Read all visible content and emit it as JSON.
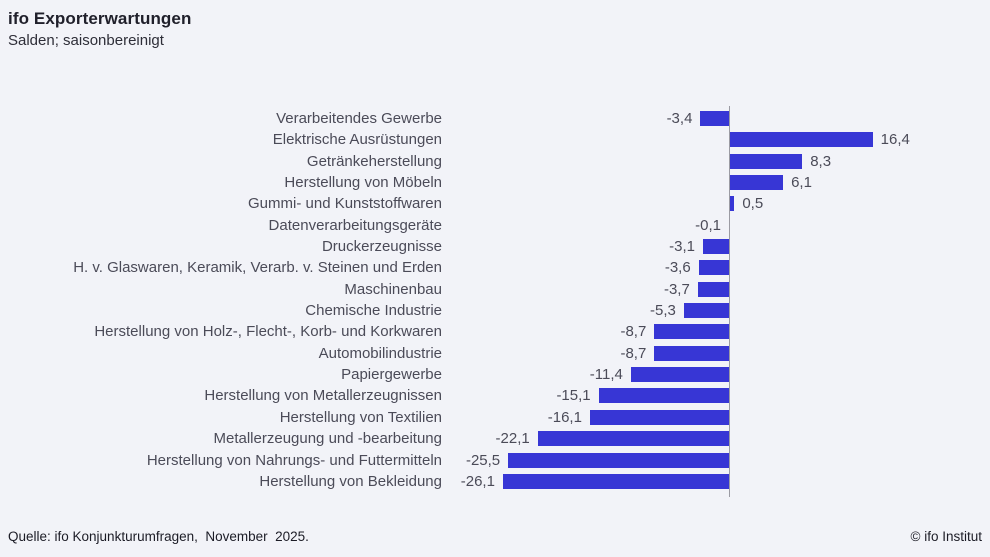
{
  "title": "ifo Exporterwartungen",
  "subtitle": "Salden; saisonbereinigt",
  "footer": {
    "source": "Quelle: ifo Konjunkturumfragen,  November  2025.",
    "copyright": "© ifo Institut"
  },
  "colors": {
    "background": "#F2F3F8",
    "bar": "#3736D5",
    "axis": "#9B9BA3",
    "category_text": "#4B4B58",
    "title_text": "#20202B"
  },
  "chart_data": {
    "type": "bar",
    "orientation": "horizontal",
    "title": "ifo Exporterwartungen",
    "subtitle": "Salden; saisonbereinigt",
    "xlabel": "",
    "ylabel": "",
    "xlim": [
      -30,
      20
    ],
    "grid": false,
    "legend": "none",
    "axis_at_zero": true,
    "categories": [
      "Verarbeitendes Gewerbe",
      "Elektrische Ausrüstungen",
      "Getränkeherstellung",
      "Herstellung von Möbeln",
      "Gummi- und Kunststoffwaren",
      "Datenverarbeitungsgeräte",
      "Druckerzeugnisse",
      "H. v. Glaswaren, Keramik, Verarb. v. Steinen und Erden",
      "Maschinenbau",
      "Chemische Industrie",
      "Herstellung von Holz-, Flecht-, Korb- und Korkwaren",
      "Automobilindustrie",
      "Papiergewerbe",
      "Herstellung von Metallerzeugnissen",
      "Herstellung von Textilien",
      "Metallerzeugung und -bearbeitung",
      "Herstellung von Nahrungs- und Futtermitteln",
      "Herstellung von Bekleidung"
    ],
    "values": [
      -3.4,
      16.4,
      8.3,
      6.1,
      0.5,
      -0.1,
      -3.1,
      -3.6,
      -3.7,
      -5.3,
      -8.7,
      -8.7,
      -11.4,
      -15.1,
      -16.1,
      -22.1,
      -25.5,
      -26.1
    ],
    "value_labels": [
      "-3,4",
      "16,4",
      "8,3",
      "6,1",
      "0,5",
      "-0,1",
      "-3,1",
      "-3,6",
      "-3,7",
      "-5,3",
      "-8,7",
      "-8,7",
      "-11,4",
      "-15,1",
      "-16,1",
      "-22,1",
      "-25,5",
      "-26,1"
    ]
  }
}
